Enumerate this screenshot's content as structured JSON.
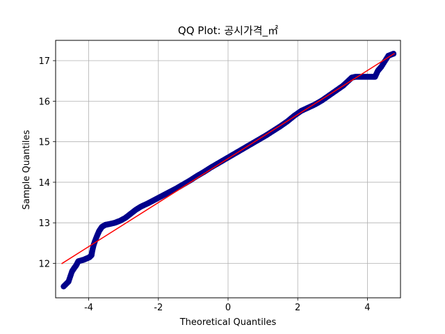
{
  "chart_data": {
    "type": "scatter",
    "title": "QQ Plot: 공시가격_㎡",
    "xlabel": "Theoretical Quantiles",
    "ylabel": "Sample Quantiles",
    "xlim": [
      -4.95,
      4.95
    ],
    "ylim": [
      11.15,
      17.5
    ],
    "xticks": [
      -4,
      -2,
      0,
      2,
      4
    ],
    "xtick_labels": [
      "-4",
      "-2",
      "0",
      "2",
      "4"
    ],
    "yticks": [
      12,
      13,
      14,
      15,
      16,
      17
    ],
    "ytick_labels": [
      "12",
      "13",
      "14",
      "15",
      "16",
      "17"
    ],
    "grid": true,
    "series": [
      {
        "kind": "markers",
        "color": "#00008b",
        "points": [
          [
            -4.72,
            11.43
          ],
          [
            -4.58,
            11.55
          ],
          [
            -4.48,
            11.8
          ],
          [
            -4.42,
            11.88
          ],
          [
            -4.36,
            11.95
          ],
          [
            -4.3,
            12.05
          ],
          [
            -4.22,
            12.07
          ],
          [
            -4.14,
            12.09
          ],
          [
            -4.06,
            12.12
          ],
          [
            -3.98,
            12.15
          ],
          [
            -3.92,
            12.2
          ],
          [
            -3.9,
            12.3
          ],
          [
            -3.86,
            12.45
          ],
          [
            -3.82,
            12.55
          ],
          [
            -3.76,
            12.68
          ],
          [
            -3.7,
            12.8
          ],
          [
            -3.62,
            12.9
          ],
          [
            -3.52,
            12.95
          ],
          [
            -3.4,
            12.97
          ],
          [
            -3.25,
            13.0
          ],
          [
            -3.1,
            13.05
          ],
          [
            -2.95,
            13.12
          ],
          [
            -2.8,
            13.22
          ],
          [
            -2.65,
            13.32
          ],
          [
            -2.5,
            13.4
          ],
          [
            -2.3,
            13.48
          ],
          [
            -2.1,
            13.57
          ],
          [
            -1.9,
            13.66
          ],
          [
            -1.7,
            13.75
          ],
          [
            -1.5,
            13.84
          ],
          [
            -1.3,
            13.94
          ],
          [
            -1.1,
            14.04
          ],
          [
            -0.9,
            14.15
          ],
          [
            -0.7,
            14.25
          ],
          [
            -0.5,
            14.36
          ],
          [
            -0.3,
            14.46
          ],
          [
            -0.1,
            14.56
          ],
          [
            0.1,
            14.66
          ],
          [
            0.3,
            14.76
          ],
          [
            0.5,
            14.86
          ],
          [
            0.7,
            14.96
          ],
          [
            0.9,
            15.06
          ],
          [
            1.1,
            15.16
          ],
          [
            1.3,
            15.27
          ],
          [
            1.5,
            15.38
          ],
          [
            1.7,
            15.5
          ],
          [
            1.9,
            15.64
          ],
          [
            2.1,
            15.76
          ],
          [
            2.3,
            15.84
          ],
          [
            2.5,
            15.92
          ],
          [
            2.7,
            16.02
          ],
          [
            2.9,
            16.14
          ],
          [
            3.1,
            16.26
          ],
          [
            3.3,
            16.38
          ],
          [
            3.45,
            16.5
          ],
          [
            3.55,
            16.58
          ],
          [
            3.65,
            16.6
          ],
          [
            3.75,
            16.6
          ],
          [
            3.85,
            16.6
          ],
          [
            3.95,
            16.6
          ],
          [
            4.05,
            16.6
          ],
          [
            4.15,
            16.6
          ],
          [
            4.22,
            16.6
          ],
          [
            4.3,
            16.75
          ],
          [
            4.4,
            16.85
          ],
          [
            4.6,
            17.12
          ],
          [
            4.75,
            17.17
          ]
        ]
      },
      {
        "kind": "reference-line",
        "color": "#ff0000",
        "x": [
          -4.78,
          4.78
        ],
        "y": [
          11.99,
          17.18
        ]
      }
    ]
  }
}
